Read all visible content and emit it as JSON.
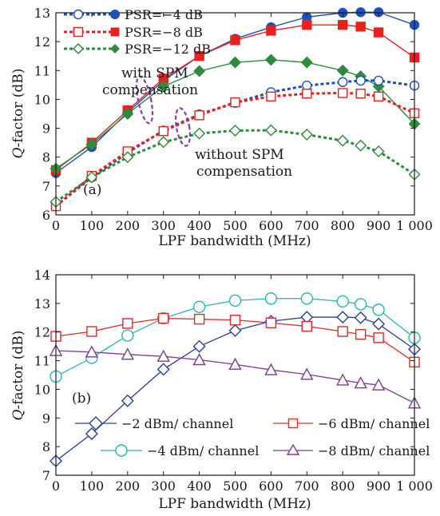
{
  "chart_data": [
    {
      "panel": "(a)",
      "type": "line",
      "xlabel": "LPF bandwidth (MHz)",
      "ylabel_italic": "Q",
      "ylabel_rest": "-factor (dB)",
      "x": [
        0,
        100,
        200,
        300,
        400,
        500,
        600,
        700,
        800,
        850,
        900,
        1000
      ],
      "xticks": [
        0,
        100,
        200,
        300,
        400,
        500,
        600,
        700,
        800,
        900,
        1000
      ],
      "xtick_labels": [
        "0",
        "100",
        "200",
        "300",
        "400",
        "500",
        "600",
        "700",
        "800",
        "900",
        "1 000"
      ],
      "xlim": [
        0,
        1000
      ],
      "ylim": [
        6,
        13
      ],
      "yticks": [
        6,
        7,
        8,
        9,
        10,
        11,
        12,
        13
      ],
      "annotations": {
        "with_spm_line1": "with SPM",
        "with_spm_line2": "compensation",
        "without_spm_line1": "without SPM",
        "without_spm_line2": "compensation"
      },
      "series": [
        {
          "name": "PSR=−4 dB",
          "color": "#1f4fbf",
          "marker": "circle",
          "group": "with",
          "values": [
            7.45,
            8.35,
            9.55,
            10.65,
            11.5,
            12.1,
            12.5,
            12.85,
            13.0,
            13.02,
            13.02,
            12.58
          ]
        },
        {
          "name": "PSR=−8 dB",
          "color": "#e8211f",
          "marker": "square",
          "group": "with",
          "values": [
            7.55,
            8.5,
            9.62,
            10.72,
            11.5,
            12.05,
            12.38,
            12.58,
            12.58,
            12.52,
            12.32,
            11.45
          ]
        },
        {
          "name": "PSR=−12 dB",
          "color": "#2e8b3e",
          "marker": "diamond",
          "group": "with",
          "values": [
            7.6,
            8.45,
            9.5,
            10.45,
            10.98,
            11.28,
            11.37,
            11.28,
            11.0,
            10.8,
            10.45,
            9.15
          ]
        },
        {
          "color": "#1f4fbf",
          "marker": "circle",
          "group": "without",
          "values": [
            6.3,
            7.3,
            8.15,
            8.92,
            9.48,
            9.88,
            10.25,
            10.48,
            10.6,
            10.65,
            10.65,
            10.48
          ]
        },
        {
          "color": "#e8211f",
          "marker": "square",
          "group": "without",
          "values": [
            6.3,
            7.35,
            8.2,
            8.9,
            9.45,
            9.9,
            10.1,
            10.2,
            10.22,
            10.2,
            10.1,
            9.52
          ]
        },
        {
          "color": "#2e8b3e",
          "marker": "diamond",
          "group": "without",
          "values": [
            6.45,
            7.3,
            8.0,
            8.52,
            8.82,
            8.92,
            8.93,
            8.78,
            8.57,
            8.4,
            8.2,
            7.4
          ]
        }
      ]
    },
    {
      "panel": "(b)",
      "type": "line",
      "xlabel": "LPF bandwidth (MHz)",
      "ylabel_italic": "Q",
      "ylabel_rest": "-factor (dB)",
      "x": [
        0,
        100,
        200,
        300,
        400,
        500,
        600,
        700,
        800,
        850,
        900,
        1000
      ],
      "xticks": [
        0,
        100,
        200,
        300,
        400,
        500,
        600,
        700,
        800,
        900,
        1000
      ],
      "xtick_labels": [
        "0",
        "100",
        "200",
        "300",
        "400",
        "500",
        "600",
        "700",
        "800",
        "900",
        "1 000"
      ],
      "xlim": [
        0,
        1000
      ],
      "ylim": [
        7,
        14
      ],
      "yticks": [
        7,
        8,
        9,
        10,
        11,
        12,
        13,
        14
      ],
      "series": [
        {
          "name": "−2 dBm/ channel",
          "color": "#2b3f9a",
          "marker": "diamond",
          "values": [
            7.5,
            8.45,
            9.6,
            10.7,
            11.5,
            12.05,
            12.38,
            12.52,
            12.52,
            12.5,
            12.28,
            11.4
          ]
        },
        {
          "name": "−4 dBm/ channel",
          "color": "#2bb5b0",
          "marker": "circle",
          "values": [
            10.45,
            11.1,
            11.88,
            12.48,
            12.88,
            13.1,
            13.17,
            13.17,
            13.07,
            12.97,
            12.78,
            11.8
          ]
        },
        {
          "name": "−6 dBm/ channel",
          "color": "#e12a27",
          "marker": "square",
          "values": [
            11.85,
            12.02,
            12.3,
            12.48,
            12.45,
            12.42,
            12.32,
            12.2,
            12.02,
            11.92,
            11.8,
            10.95
          ]
        },
        {
          "name": "−8 dBm/ channel",
          "color": "#7a3f8c",
          "marker": "triangle",
          "values": [
            11.35,
            11.3,
            11.22,
            11.15,
            11.03,
            10.87,
            10.68,
            10.52,
            10.32,
            10.22,
            10.15,
            9.52
          ]
        }
      ]
    }
  ]
}
